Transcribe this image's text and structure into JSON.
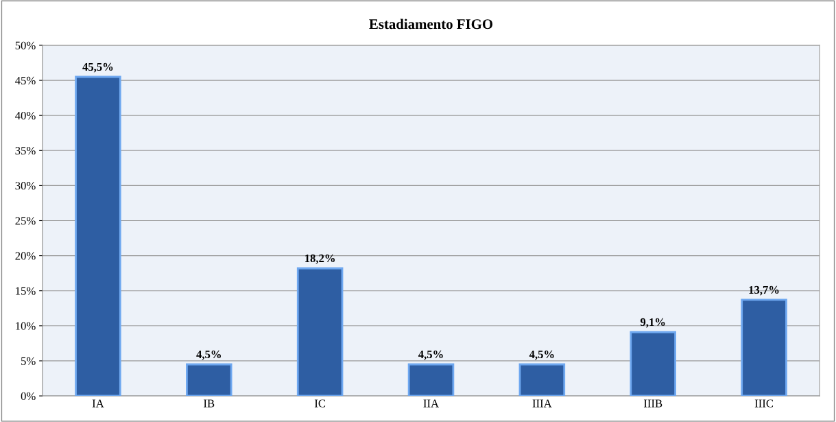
{
  "chart_data": {
    "type": "bar",
    "title": "Estadiamento FIGO",
    "categories": [
      "IA",
      "IB",
      "IC",
      "IIA",
      "IIIA",
      "IIIB",
      "IIIC"
    ],
    "values": [
      45.5,
      4.5,
      18.2,
      4.5,
      4.5,
      9.1,
      13.7
    ],
    "value_labels": [
      "45,5%",
      "4,5%",
      "18,2%",
      "4,5%",
      "4,5%",
      "9,1%",
      "13,7%"
    ],
    "color": "#2e5ea3",
    "ylim": [
      0,
      50
    ],
    "yticks": [
      {
        "value": 0,
        "label": "0%"
      },
      {
        "value": 5,
        "label": "5%"
      },
      {
        "value": 10,
        "label": "10%"
      },
      {
        "value": 15,
        "label": "15%"
      },
      {
        "value": 20,
        "label": "20%"
      },
      {
        "value": 25,
        "label": "25%"
      },
      {
        "value": 30,
        "label": "30%"
      },
      {
        "value": 35,
        "label": "35%"
      },
      {
        "value": 40,
        "label": "40%"
      },
      {
        "value": 45,
        "label": "45%"
      },
      {
        "value": 50,
        "label": "50%"
      }
    ],
    "grid": "y",
    "legend": false
  }
}
